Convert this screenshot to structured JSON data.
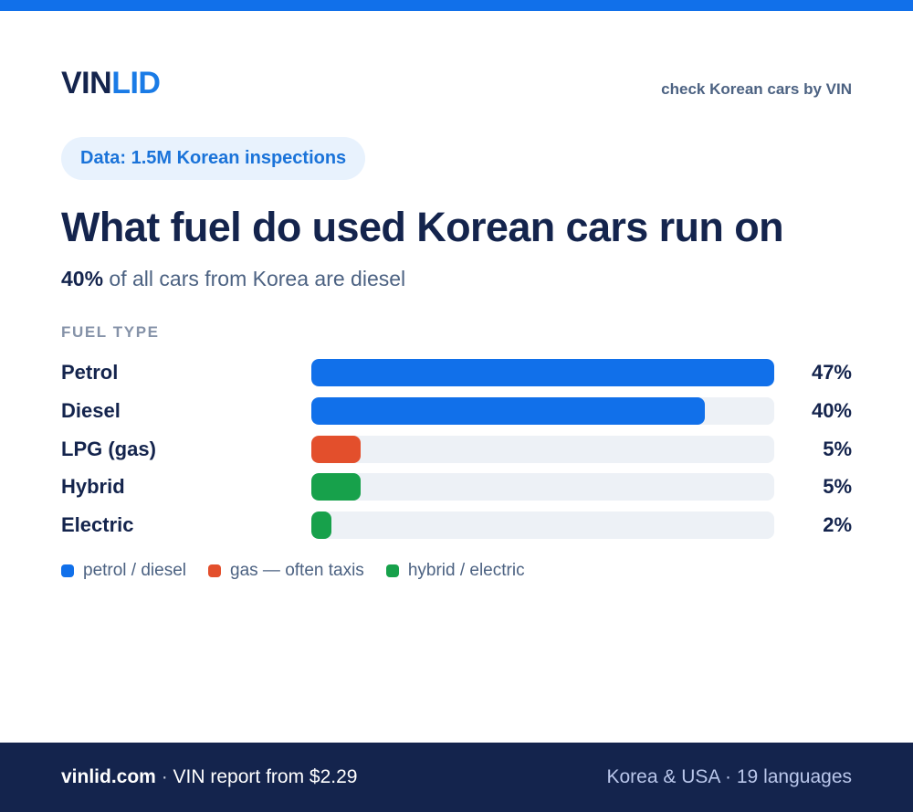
{
  "header": {
    "logo_part1": "VIN",
    "logo_part2": "LID",
    "tagline": "check Korean cars by VIN"
  },
  "badge": {
    "text": "Data: 1.5M Korean inspections"
  },
  "headline": {
    "title": "What fuel do used Korean cars run on",
    "subtitle_strong": "40%",
    "subtitle_rest": " of all cars from Korea are diesel"
  },
  "chart_data": {
    "type": "bar",
    "orientation": "horizontal",
    "title": "",
    "xlabel": "",
    "ylabel": "FUEL TYPE",
    "xlim": [
      0,
      47
    ],
    "grid": false,
    "legend_placement": "bottom-left",
    "categories": [
      "Petrol",
      "Diesel",
      "LPG (gas)",
      "Hybrid",
      "Electric"
    ],
    "values": [
      47,
      40,
      5,
      5,
      2
    ],
    "value_labels": [
      "47%",
      "40%",
      "5%",
      "5%",
      "2%"
    ],
    "bar_colors": [
      "#1170ea",
      "#1170ea",
      "#e34f2c",
      "#17a14b",
      "#17a14b"
    ],
    "legend": [
      {
        "label": "petrol / diesel",
        "color": "#1170ea"
      },
      {
        "label": "gas — often taxis",
        "color": "#e34f2c"
      },
      {
        "label": "hybrid / electric",
        "color": "#17a14b"
      }
    ]
  },
  "footer": {
    "domain": "vinlid.com",
    "separator": " · ",
    "offer": "VIN report from $2.29",
    "right": "Korea & USA · 19 languages"
  },
  "colors": {
    "accent": "#1170ea",
    "navy": "#14244d",
    "track": "#edf1f6"
  }
}
